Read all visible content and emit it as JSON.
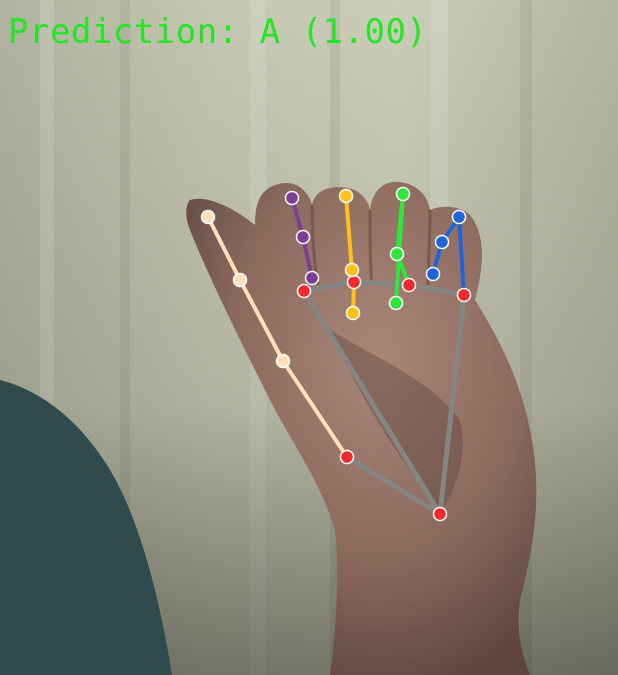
{
  "overlay": {
    "prediction_label": "Prediction: A (1.00)",
    "text_color": "#22e622"
  },
  "colors": {
    "skeleton_gray": "#858585",
    "thumb": "#ffe0b8",
    "index": "#7d3f95",
    "middle": "#ffc11a",
    "ring": "#2fe63a",
    "pinky": "#1f64d9",
    "joint_red": "#ef2b2b",
    "wall": "#c9cbb4",
    "arm": "#2f4b4e",
    "skin": "#8f6f63"
  },
  "icons": {
    "wrist": "wrist-landmark-icon",
    "knuckle": "knuckle-landmark-icon"
  }
}
